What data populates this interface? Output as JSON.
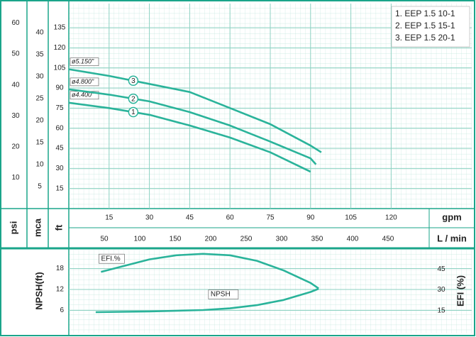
{
  "chart_data": [
    {
      "type": "line",
      "xlabel": "gpm",
      "xlim": [
        0,
        150
      ],
      "xticks": [
        15,
        30,
        45,
        60,
        75,
        90,
        105,
        120
      ],
      "x2label": "L / min",
      "x2lim": [
        0,
        568
      ],
      "x2ticks": [
        50,
        100,
        150,
        200,
        250,
        300,
        350,
        400,
        450
      ],
      "ylabel": "ft",
      "ylim": [
        0,
        153
      ],
      "yticks": [
        15,
        30,
        45,
        60,
        75,
        90,
        105,
        120,
        135
      ],
      "mca_axis": {
        "label": "mca",
        "lim": [
          0,
          46.6
        ],
        "ticks": [
          5,
          10,
          15,
          20,
          25,
          30,
          35,
          40
        ]
      },
      "psi_axis": {
        "label": "psi",
        "lim": [
          0,
          66.3
        ],
        "ticks": [
          10,
          20,
          30,
          40,
          50,
          60
        ]
      },
      "grid": true,
      "series": [
        {
          "name": "1. EEP 1.5 10-1",
          "label": "ø4.400\"",
          "marker": "1",
          "color": "#2ab39a",
          "x": [
            0,
            15,
            30,
            45,
            60,
            75,
            90
          ],
          "values": [
            79,
            75,
            70,
            62,
            53,
            42,
            27.5
          ]
        },
        {
          "name": "2. EEP 1.5 15-1",
          "label": "ø4.800\"",
          "marker": "2",
          "color": "#2ab39a",
          "x": [
            0,
            15,
            30,
            45,
            60,
            75,
            90,
            92
          ],
          "values": [
            89,
            85,
            80,
            72,
            62,
            50,
            37.5,
            33
          ]
        },
        {
          "name": "3. EEP 1.5 20-1",
          "label": "ø5.150\"",
          "marker": "3",
          "color": "#2ab39a",
          "x": [
            0,
            15,
            30,
            45,
            60,
            75,
            90,
            94
          ],
          "values": [
            104,
            99,
            93,
            87,
            75,
            63,
            47,
            42
          ]
        }
      ]
    },
    {
      "type": "line",
      "xlim": [
        0,
        150
      ],
      "ylabel": "NPSH(ft)",
      "ylim": [
        0,
        23.4
      ],
      "yticks": [
        6,
        12,
        18
      ],
      "y2label": "EFI (%)",
      "y2lim": [
        0,
        59
      ],
      "y2ticks": [
        15,
        30,
        45
      ],
      "grid": true,
      "series": [
        {
          "name": "EFI.%",
          "axis": "y2",
          "color": "#2ab39a",
          "x": [
            12,
            20,
            30,
            40,
            50,
            60,
            70,
            80,
            90,
            93
          ],
          "values": [
            43,
            47,
            52,
            55,
            56,
            55,
            51,
            44,
            35,
            31
          ]
        },
        {
          "name": "NPSH",
          "color": "#2ab39a",
          "x": [
            10,
            30,
            50,
            60,
            70,
            80,
            90,
            93
          ],
          "values": [
            5.5,
            5.7,
            6.1,
            6.6,
            7.5,
            9,
            11.3,
            12.2
          ]
        }
      ]
    }
  ]
}
